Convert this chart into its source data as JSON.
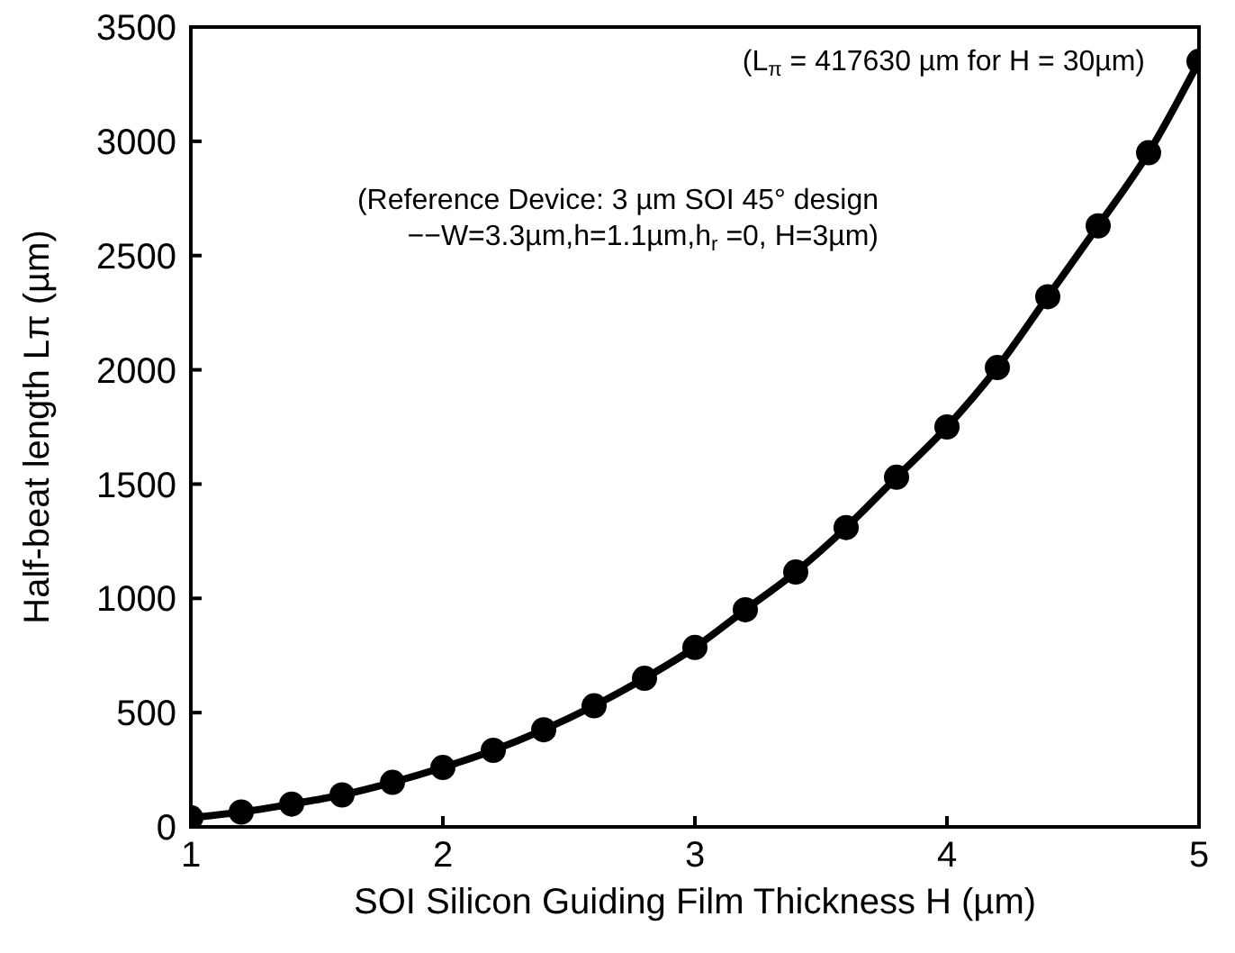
{
  "chart_data": {
    "type": "line",
    "xlabel": "SOI Silicon Guiding Film Thickness H (µm)",
    "ylabel": "Half-beat length Lπ (µm)",
    "annotations": [
      "(L$_{π}$ = 417630 µm for H = 30µm)",
      "(Reference Device: 3 µm SOI 45° design",
      "−−W=3.3µm,h=1.1µm,h$_{r}$=0, H=3µm)"
    ],
    "x": [
      1,
      1.2,
      1.4,
      1.6,
      1.8,
      2,
      2.2,
      2.4,
      2.6,
      2.8,
      3,
      3.2,
      3.4,
      3.6,
      3.8,
      4,
      4.2,
      4.4,
      4.6,
      4.8,
      5
    ],
    "series": [
      {
        "color": "#000000",
        "values": [
          40,
          65,
          100,
          140,
          195,
          260,
          335,
          425,
          530,
          650,
          785,
          950,
          1115,
          1310,
          1530,
          1750,
          2010,
          2320,
          2630,
          2950,
          3350
        ]
      }
    ],
    "xlim": [
      1,
      5
    ],
    "xticks": [
      1,
      2,
      3,
      4,
      5
    ],
    "ylim": [
      0,
      3500
    ],
    "yticks": [
      0,
      500,
      1000,
      1500,
      2000,
      2500,
      3000,
      3500
    ],
    "marker": "circle",
    "line_style": "solid",
    "grid": false,
    "legend": false
  }
}
